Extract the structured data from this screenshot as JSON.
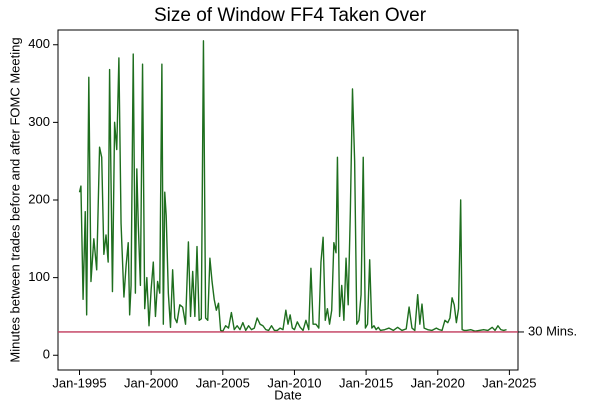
{
  "chart_data": {
    "type": "line",
    "title": "Size of Window FF4 Taken Over",
    "x_label": "Date",
    "y_label": "Minutes between trades before and after FOMC Meeting",
    "color": "#1e6e1e",
    "x": [
      1995.0,
      1995.1,
      1995.25,
      1995.4,
      1995.5,
      1995.65,
      1995.8,
      1996.0,
      1996.2,
      1996.4,
      1996.55,
      1996.7,
      1996.85,
      1997.0,
      1997.1,
      1997.3,
      1997.45,
      1997.6,
      1997.75,
      1997.9,
      1998.1,
      1998.25,
      1998.4,
      1998.5,
      1998.6,
      1998.75,
      1998.9,
      1999.0,
      1999.1,
      1999.25,
      1999.4,
      1999.55,
      1999.7,
      1999.85,
      2000.0,
      2000.15,
      2000.3,
      2000.45,
      2000.6,
      2000.75,
      2000.85,
      2000.95,
      2001.05,
      2001.2,
      2001.35,
      2001.5,
      2001.65,
      2001.8,
      2002.0,
      2002.2,
      2002.4,
      2002.6,
      2002.75,
      2002.9,
      2003.05,
      2003.2,
      2003.35,
      2003.5,
      2003.65,
      2003.8,
      2003.95,
      2004.1,
      2004.25,
      2004.4,
      2004.55,
      2004.7,
      2004.85,
      2005.0,
      2005.2,
      2005.4,
      2005.6,
      2005.8,
      2006.0,
      2006.2,
      2006.4,
      2006.6,
      2006.8,
      2007.0,
      2007.2,
      2007.4,
      2007.6,
      2007.8,
      2008.0,
      2008.2,
      2008.4,
      2008.6,
      2008.8,
      2009.0,
      2009.2,
      2009.4,
      2009.55,
      2009.7,
      2009.85,
      2010.0,
      2010.2,
      2010.4,
      2010.6,
      2010.8,
      2011.0,
      2011.15,
      2011.3,
      2011.5,
      2011.7,
      2011.85,
      2012.0,
      2012.15,
      2012.3,
      2012.45,
      2012.6,
      2012.75,
      2012.9,
      2013.0,
      2013.15,
      2013.3,
      2013.45,
      2013.6,
      2013.75,
      2013.9,
      2014.05,
      2014.2,
      2014.35,
      2014.5,
      2014.65,
      2014.8,
      2014.95,
      2015.1,
      2015.25,
      2015.4,
      2015.55,
      2015.7,
      2015.85,
      2016.0,
      2016.3,
      2016.6,
      2016.9,
      2017.2,
      2017.5,
      2017.8,
      2018.0,
      2018.2,
      2018.4,
      2018.6,
      2018.75,
      2018.9,
      2019.05,
      2019.3,
      2019.6,
      2019.9,
      2020.1,
      2020.3,
      2020.5,
      2020.7,
      2020.85,
      2021.0,
      2021.15,
      2021.3,
      2021.45,
      2021.6,
      2021.7,
      2021.85,
      2022.0,
      2022.3,
      2022.6,
      2022.9,
      2023.2,
      2023.5,
      2023.8,
      2024.0,
      2024.2,
      2024.4,
      2024.6,
      2024.8
    ],
    "values": [
      210,
      218,
      72,
      185,
      52,
      358,
      95,
      150,
      110,
      268,
      255,
      130,
      155,
      120,
      368,
      82,
      300,
      265,
      383,
      170,
      75,
      115,
      145,
      52,
      90,
      388,
      80,
      240,
      170,
      90,
      375,
      60,
      100,
      38,
      85,
      120,
      50,
      95,
      80,
      375,
      40,
      210,
      180,
      80,
      36,
      110,
      48,
      42,
      65,
      62,
      40,
      146,
      50,
      108,
      50,
      140,
      45,
      47,
      405,
      48,
      45,
      125,
      95,
      72,
      58,
      67,
      32,
      31,
      38,
      35,
      55,
      33,
      38,
      33,
      42,
      32,
      38,
      33,
      35,
      48,
      40,
      38,
      33,
      32,
      38,
      32,
      32,
      35,
      33,
      58,
      40,
      52,
      35,
      33,
      43,
      36,
      32,
      45,
      33,
      112,
      40,
      40,
      35,
      120,
      152,
      45,
      60,
      40,
      58,
      145,
      132,
      255,
      50,
      90,
      45,
      125,
      65,
      185,
      343,
      250,
      40,
      45,
      78,
      255,
      35,
      40,
      123,
      35,
      38,
      33,
      36,
      32,
      33,
      35,
      32,
      36,
      32,
      34,
      62,
      35,
      32,
      78,
      40,
      66,
      35,
      33,
      32,
      35,
      33,
      32,
      45,
      42,
      48,
      74,
      65,
      42,
      60,
      200,
      33,
      32,
      32,
      33,
      31,
      32,
      33,
      32,
      36,
      32,
      38,
      33,
      32,
      33
    ],
    "reference_line": {
      "value": 30,
      "label": "30 Mins.",
      "color": "#c0385a"
    },
    "xlim": [
      1993.5,
      2025.6
    ],
    "ylim": [
      -19,
      419
    ],
    "xticks": [
      {
        "value": 1995,
        "label": "Jan-1995"
      },
      {
        "value": 2000,
        "label": "Jan-2000"
      },
      {
        "value": 2005,
        "label": "Jan-2005"
      },
      {
        "value": 2010,
        "label": "Jan-2010"
      },
      {
        "value": 2015,
        "label": "Jan-2015"
      },
      {
        "value": 2020,
        "label": "Jan-2020"
      },
      {
        "value": 2025,
        "label": "Jan-2025"
      }
    ],
    "yticks": [
      0,
      100,
      200,
      300,
      400
    ]
  }
}
